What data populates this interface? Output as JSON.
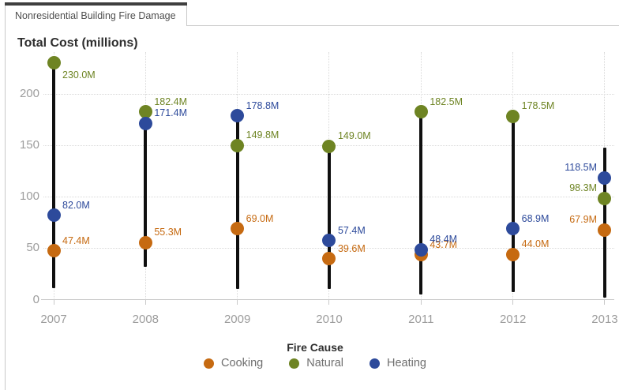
{
  "window": {
    "tab_label": "Nonresidential Building Fire Damage"
  },
  "chart_data": {
    "type": "scatter",
    "subtype": "needle-range-with-points",
    "title": "Total Cost (millions)",
    "x_categories": [
      "2007",
      "2008",
      "2009",
      "2010",
      "2011",
      "2012",
      "2013"
    ],
    "yticks": [
      0,
      50,
      100,
      150,
      200
    ],
    "ylim": [
      0,
      240
    ],
    "grid": "dotted",
    "axis_text_color": "#9d9d9d",
    "needle_color": "#0f0f0f",
    "series": [
      {
        "name": "Cooking",
        "color": "#c66a11",
        "values": [
          47.4,
          55.3,
          69.0,
          39.6,
          43.7,
          44.0,
          67.9
        ]
      },
      {
        "name": "Natural",
        "color": "#6e8423",
        "values": [
          230.0,
          182.4,
          149.8,
          149.0,
          182.5,
          178.5,
          98.3
        ]
      },
      {
        "name": "Heating",
        "color": "#2d4a9b",
        "values": [
          82.0,
          171.4,
          178.8,
          57.4,
          48.4,
          68.9,
          118.5
        ]
      }
    ],
    "point_label_suffix": "M",
    "point_labels": {
      "Cooking": [
        "47.4M",
        "55.3M",
        "69.0M",
        "39.6M",
        "43.7M",
        "44.0M",
        "67.9M"
      ],
      "Natural": [
        "230.0M",
        "182.4M",
        "149.8M",
        "149.0M",
        "182.5M",
        "178.5M",
        "98.3M"
      ],
      "Heating": [
        "82.0M",
        "171.4M",
        "178.8M",
        "57.4M",
        "48.4M",
        "68.9M",
        "118.5M"
      ]
    },
    "needle_ranges_est": [
      [
        11,
        230
      ],
      [
        32,
        182.4
      ],
      [
        10,
        178.8
      ],
      [
        10,
        149
      ],
      [
        5,
        182.5
      ],
      [
        7,
        178.5
      ],
      [
        2,
        148
      ]
    ],
    "label_placement_overrides": [
      {
        "series": "Natural",
        "x_index": 0,
        "placement": "below-right"
      },
      {
        "series": "*",
        "x_index": 6,
        "placement": "above-left"
      }
    ],
    "legend": {
      "title": "Fire Cause",
      "position": "bottom",
      "items": [
        "Cooking",
        "Natural",
        "Heating"
      ]
    }
  }
}
